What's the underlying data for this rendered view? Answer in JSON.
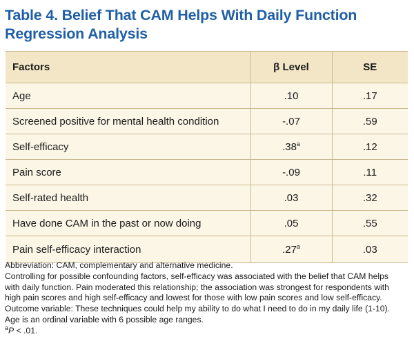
{
  "title_line1": "Table 4. Belief That CAM Helps With Daily Function",
  "title_line2": "Regression Analysis",
  "headers": {
    "factors": "Factors",
    "beta": "β Level",
    "se": "SE"
  },
  "rows": [
    {
      "factor": "Age",
      "beta": ".10",
      "beta_sup": "",
      "se": ".17"
    },
    {
      "factor": "Screened positive for mental health condition",
      "beta": "-.07",
      "beta_sup": "",
      "se": ".59"
    },
    {
      "factor": "Self-efficacy",
      "beta": ".38",
      "beta_sup": "a",
      "se": ".12"
    },
    {
      "factor": "Pain score",
      "beta": "-.09",
      "beta_sup": "",
      "se": ".11"
    },
    {
      "factor": "Self-rated health",
      "beta": ".03",
      "beta_sup": "",
      "se": ".32"
    },
    {
      "factor": "Have done CAM in the past or now doing",
      "beta": ".05",
      "beta_sup": "",
      "se": ".55"
    },
    {
      "factor": "Pain self-efficacy interaction",
      "beta": ".27",
      "beta_sup": "a",
      "se": ".03"
    }
  ],
  "notes": {
    "abbreviation": "Abbreviation: CAM, complementary and alternative medicine.",
    "controlling": "Controlling for possible confounding factors, self-efficacy was associated with the belief that CAM helps with daily function. Pain moderated this relationship; the association was strongest for respondents with high pain scores and high self-efficacy and lowest for those with low pain scores and low self-efficacy.",
    "outcome": "Outcome variable: These techniques could help my ability to do what I need to do in my daily life (1-10). Age is an ordinal variable with 6 possible age ranges.",
    "footnote_sup": "a",
    "footnote_p": "P",
    "footnote_rest": " < .01."
  }
}
